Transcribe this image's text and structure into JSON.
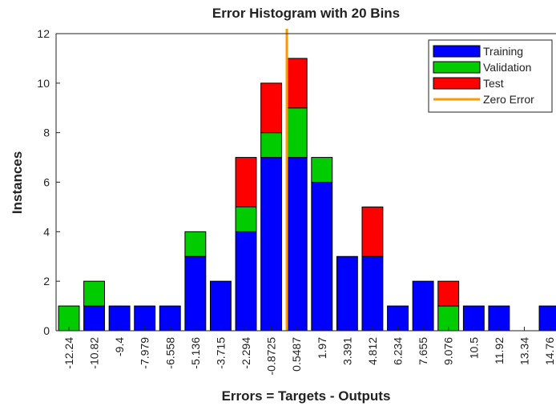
{
  "chart_data": {
    "type": "bar",
    "stacked": true,
    "title": "Error Histogram with 20 Bins",
    "x_label": "Errors = Targets - Outputs",
    "y_label": "Instances",
    "categories": [
      -12.24,
      -10.82,
      -9.4,
      -7.979,
      -6.558,
      -5.136,
      -3.715,
      -2.294,
      -0.8725,
      0.5487,
      1.97,
      3.391,
      4.812,
      6.234,
      7.655,
      9.076,
      10.5,
      11.92,
      13.34,
      14.76
    ],
    "series": [
      {
        "name": "Training",
        "color": "#0000ff",
        "values": [
          0,
          1,
          1,
          1,
          1,
          3,
          2,
          4,
          7,
          7,
          6,
          3,
          3,
          1,
          2,
          0,
          1,
          1,
          0,
          1
        ]
      },
      {
        "name": "Validation",
        "color": "#00cc00",
        "values": [
          1,
          1,
          0,
          0,
          0,
          1,
          0,
          1,
          1,
          2,
          1,
          0,
          0,
          0,
          0,
          1,
          0,
          0,
          0,
          0
        ]
      },
      {
        "name": "Test",
        "color": "#ff0000",
        "values": [
          0,
          0,
          0,
          0,
          0,
          0,
          0,
          2,
          2,
          2,
          0,
          0,
          2,
          0,
          0,
          1,
          0,
          0,
          0,
          0
        ]
      }
    ],
    "zero_line": {
      "name": "Zero Error",
      "color": "#ff9900",
      "value": 0
    },
    "ylim": [
      0,
      12
    ],
    "yticks": [
      0,
      2,
      4,
      6,
      8,
      10,
      12
    ],
    "legend": "upper right"
  }
}
